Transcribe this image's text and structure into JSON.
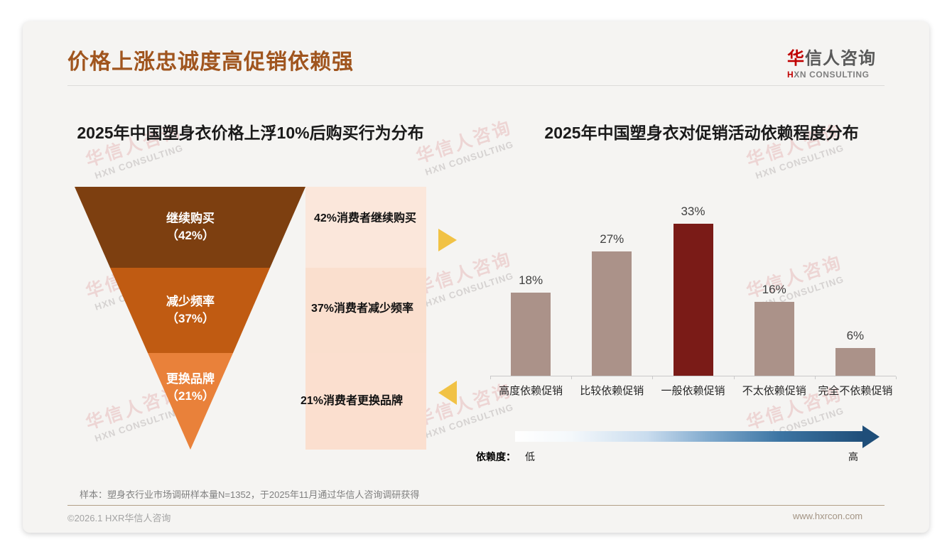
{
  "header": {
    "title": "价格上涨忠诚度高促销依赖强",
    "logo": {
      "name_red": "华",
      "name_rest": "信人咨询",
      "sub_red": "H",
      "sub_rest": "XN CONSULTING"
    }
  },
  "watermark": {
    "line1": "华信人咨询",
    "line2": "HXN CONSULTING"
  },
  "colors": {
    "title_brown": "#a0551e",
    "logo_red": "#c00000",
    "yellow_arrow": "#f1c245",
    "dependency_arrow_dark": "#1f4e79"
  },
  "chart_data": [
    {
      "type": "funnel",
      "title": "2025年中国塑身衣价格上浮10%后购买行为分布",
      "segments": [
        {
          "label": "继续购买",
          "value": 42,
          "pct_display": "（42%）",
          "annotation": "42%消费者继续购买",
          "color": "#7d3f10",
          "annotation_bg": "#fbe7db"
        },
        {
          "label": "减少频率",
          "value": 37,
          "pct_display": "（37%）",
          "annotation": "37%消费者减少频率",
          "color": "#c05b12",
          "annotation_bg": "#fadfce"
        },
        {
          "label": "更换品牌",
          "value": 21,
          "pct_display": "（21%）",
          "annotation": "21%消费者更换品牌",
          "color": "#e9813a",
          "annotation_bg": "#fbdfcf"
        }
      ]
    },
    {
      "type": "bar",
      "title": "2025年中国塑身衣对促销活动依赖程度分布",
      "categories": [
        "高度依赖促销",
        "比较依赖促销",
        "一般依赖促销",
        "不太依赖促销",
        "完全不依赖促销"
      ],
      "values": [
        18,
        27,
        33,
        16,
        6
      ],
      "value_labels": [
        "18%",
        "27%",
        "33%",
        "16%",
        "6%"
      ],
      "bar_color": "#ab9289",
      "highlight_color": "#7a1b17",
      "highlight_index": 2,
      "ylim": [
        0,
        35
      ],
      "grid": false,
      "axis": {
        "label": "依赖度：",
        "low": "低",
        "high": "高"
      }
    }
  ],
  "footnote": "样本：塑身衣行业市场调研样本量N=1352，于2025年11月通过华信人咨询调研获得",
  "footer": {
    "copyright": "©2026.1 HXR华信人咨询",
    "website": "www.hxrcon.com"
  }
}
